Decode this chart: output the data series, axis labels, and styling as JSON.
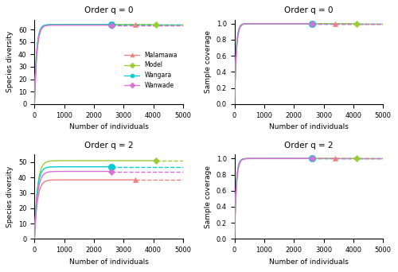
{
  "sites": [
    "Malamawa",
    "Model",
    "Wangara",
    "Wanwade"
  ],
  "colors": [
    "#f08080",
    "#9acd32",
    "#00ced1",
    "#da70d6"
  ],
  "marker_styles": [
    "^",
    "D",
    "o",
    "D"
  ],
  "marker_sizes": [
    5,
    4,
    6,
    4
  ],
  "xlim": [
    0,
    5000
  ],
  "xticks": [
    0,
    1000,
    2000,
    3000,
    4000,
    5000
  ],
  "xlabel": "Number of individuals",
  "titles": {
    "top_left": "Order q = 0",
    "top_right": "Order q = 0",
    "bot_left": "Order q = 2",
    "bot_right": "Order q = 2"
  },
  "ylabel_left": "Species diversity",
  "ylabel_right": "Sample coverage",
  "q0": {
    "ylim": [
      0,
      68
    ],
    "yticks": [
      0,
      10,
      20,
      30,
      40,
      50,
      60
    ],
    "rarefaction_rate": 0.012,
    "sites": {
      "Malamawa": {
        "x_obs": 3400,
        "y_asym": 64.0,
        "rate": 0.012
      },
      "Model": {
        "x_obs": 4100,
        "y_asym": 64.0,
        "rate": 0.013
      },
      "Wangara": {
        "x_obs": 2600,
        "y_asym": 64.0,
        "rate": 0.014
      },
      "Wanwade": {
        "x_obs": 2600,
        "y_asym": 63.5,
        "rate": 0.013
      }
    }
  },
  "q2": {
    "ylim": [
      0,
      55
    ],
    "yticks": [
      0,
      10,
      20,
      30,
      40,
      50
    ],
    "sites": {
      "Malamawa": {
        "x_obs": 3400,
        "y_asym": 38.5,
        "rate": 0.01
      },
      "Model": {
        "x_obs": 4100,
        "y_asym": 51.0,
        "rate": 0.01
      },
      "Wangara": {
        "x_obs": 2600,
        "y_asym": 47.0,
        "rate": 0.011
      },
      "Wanwade": {
        "x_obs": 2600,
        "y_asym": 44.0,
        "rate": 0.01
      }
    }
  },
  "coverage": {
    "ylim": [
      0.0,
      1.05
    ],
    "yticks": [
      0.0,
      0.2,
      0.4,
      0.6,
      0.8,
      1.0
    ],
    "sites": {
      "Malamawa": {
        "x_obs": 3400,
        "rate": 0.016
      },
      "Model": {
        "x_obs": 4100,
        "rate": 0.017
      },
      "Wangara": {
        "x_obs": 2600,
        "rate": 0.018
      },
      "Wanwade": {
        "x_obs": 2600,
        "rate": 0.017
      }
    }
  },
  "background": "#ffffff"
}
